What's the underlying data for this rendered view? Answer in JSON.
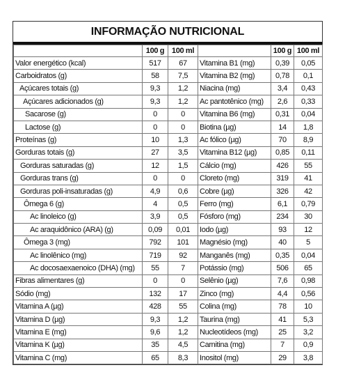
{
  "table": {
    "title": "INFORMAÇÃO NUTRICIONAL",
    "header": [
      "100 g",
      "100 ml",
      "100 g",
      "100 ml"
    ],
    "rows": [
      [
        "Valor energético (kcal)",
        "517",
        "67",
        "Vitamina B1 (mg)",
        "0,39",
        "0,05"
      ],
      [
        "Carboidratos (g)",
        "58",
        "7,5",
        "Vitamina B2 (mg)",
        "0,78",
        "0,1"
      ],
      [
        "Açúcares totais (g)",
        "9,3",
        "1,2",
        "Niacina (mg)",
        "3,4",
        "0,43"
      ],
      [
        "Açúcares adicionados (g)",
        "9,3",
        "1,2",
        "Ac pantotênico (mg)",
        "2,6",
        "0,33"
      ],
      [
        "Sacarose (g)",
        "0",
        "0",
        "Vitamina B6 (mg)",
        "0,31",
        "0,04"
      ],
      [
        "Lactose (g)",
        "0",
        "0",
        "Biotina (µg)",
        "14",
        "1,8"
      ],
      [
        "Proteínas (g)",
        "10",
        "1,3",
        "Ac fólico (µg)",
        "70",
        "8,9"
      ],
      [
        "Gorduras totais (g)",
        "27",
        "3,5",
        "Vitamina B12 (µg)",
        "0,85",
        "0,11"
      ],
      [
        "Gorduras saturadas (g)",
        "12",
        "1,5",
        "Cálcio (mg)",
        "426",
        "55"
      ],
      [
        "Gorduras trans (g)",
        "0",
        "0",
        "Cloreto (mg)",
        "319",
        "41"
      ],
      [
        "Gorduras poli-insaturadas (g)",
        "4,9",
        "0,6",
        "Cobre (µg)",
        "326",
        "42"
      ],
      [
        "Ômega 6 (g)",
        "4",
        "0,5",
        "Ferro (mg)",
        "6,1",
        "0,79"
      ],
      [
        "Ac linoleico (g)",
        "3,9",
        "0,5",
        "Fósforo (mg)",
        "234",
        "30"
      ],
      [
        "Ac araquidônico (ARA) (g)",
        "0,09",
        "0,01",
        "Iodo (µg)",
        "93",
        "12"
      ],
      [
        "Ômega 3 (mg)",
        "792",
        "101",
        "Magnésio (mg)",
        "40",
        "5"
      ],
      [
        "Ac linolênico (mg)",
        "719",
        "92",
        "Manganês (mg)",
        "0,35",
        "0,04"
      ],
      [
        "Ac docosaexaenoico (DHA) (mg)",
        "55",
        "7",
        "Potássio (mg)",
        "506",
        "65"
      ],
      [
        "Fibras alimentares (g)",
        "0",
        "0",
        "Selênio (µg)",
        "7,6",
        "0,98"
      ],
      [
        "Sódio (mg)",
        "132",
        "17",
        "Zinco (mg)",
        "4,4",
        "0,56"
      ],
      [
        "Vitamina A (µg)",
        "428",
        "55",
        "Colina (mg)",
        "78",
        "10"
      ],
      [
        "Vitamina D (µg)",
        "9,3",
        "1,2",
        "Taurina (mg)",
        "41",
        "5,3"
      ],
      [
        "Vitamina E (mg)",
        "9,6",
        "1,2",
        "Nucleotídeos (mg)",
        "25",
        "3,2"
      ],
      [
        "Vitamina K (µg)",
        "35",
        "4,5",
        "Carnitina (mg)",
        "7",
        "0,9"
      ],
      [
        "Vitamina C (mg)",
        "65",
        "8,3",
        "Inositol (mg)",
        "29",
        "3,8"
      ]
    ]
  }
}
